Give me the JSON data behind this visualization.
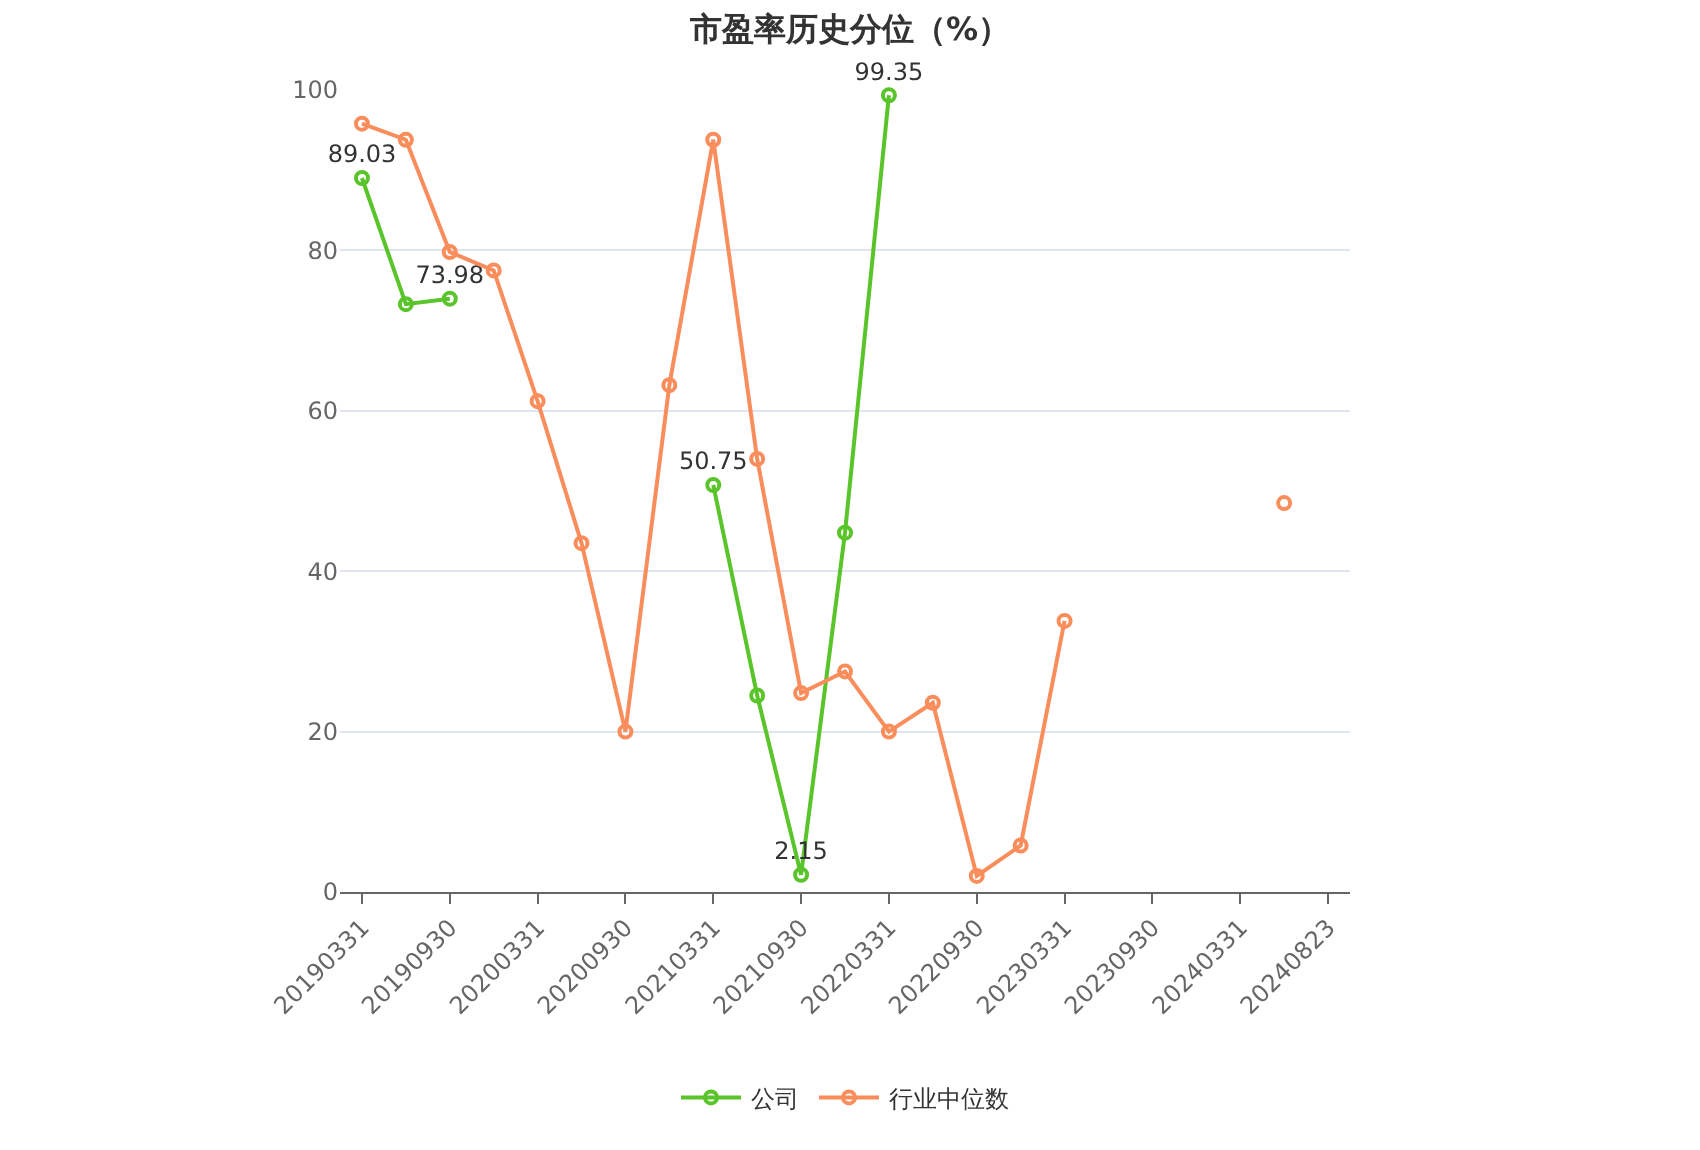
{
  "chart_data": {
    "type": "line",
    "title": "市盈率历史分位（%）",
    "categories": [
      "20190331",
      null,
      "20190930",
      null,
      "20200331",
      null,
      "20200930",
      null,
      "20210331",
      null,
      "20210930",
      null,
      "20220331",
      null,
      "20220930",
      null,
      "20230331",
      null,
      "20230930",
      null,
      "20240331",
      null,
      "20240823"
    ],
    "series": [
      {
        "name": "公司",
        "color": "#5ac42b",
        "values": [
          89.03,
          73.3,
          73.98,
          null,
          null,
          null,
          null,
          null,
          50.75,
          24.5,
          2.15,
          44.8,
          99.35,
          null,
          null,
          null,
          null,
          null,
          null,
          null,
          null,
          null,
          null
        ],
        "value_labels": [
          "89.03",
          null,
          "73.98",
          null,
          null,
          null,
          null,
          null,
          "50.75",
          null,
          "2.15",
          null,
          "99.35",
          null,
          null,
          null,
          null,
          null,
          null,
          null,
          null,
          null,
          null
        ]
      },
      {
        "name": "行业中位数",
        "color": "#f98d5c",
        "values": [
          95.8,
          93.8,
          79.8,
          77.5,
          61.2,
          43.5,
          20,
          63.2,
          93.8,
          54,
          24.8,
          27.5,
          20,
          23.6,
          2,
          5.8,
          33.8,
          null,
          null,
          null,
          null,
          48.5,
          null
        ]
      }
    ],
    "ylim": [
      0,
      100
    ],
    "yticks": [
      0,
      20,
      40,
      60,
      80,
      100
    ],
    "grid": "y",
    "legend": "bottom",
    "marker": "circle",
    "line_style": "solid"
  }
}
